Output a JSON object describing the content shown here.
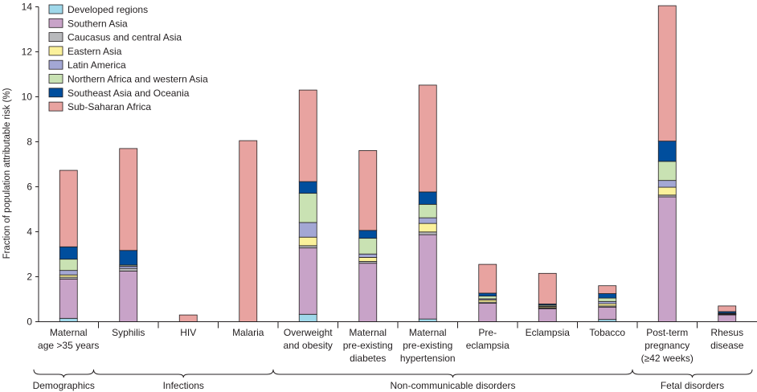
{
  "chart_data": {
    "type": "bar",
    "stacked": true,
    "title": "",
    "xlabel": "",
    "ylabel": "Fraction of population attributable risk (%)",
    "ylim": [
      0,
      14
    ],
    "yticks": [
      "0",
      "2",
      "4",
      "6",
      "8",
      "10",
      "12",
      "14"
    ],
    "legend_position": "top-left",
    "grid": false,
    "categories": [
      [
        "Maternal",
        "age >35 years"
      ],
      [
        "Syphilis"
      ],
      [
        "HIV"
      ],
      [
        "Malaria"
      ],
      [
        "Overweight",
        "and obesity"
      ],
      [
        "Maternal",
        "pre-existing",
        "diabetes"
      ],
      [
        "Maternal",
        "pre-existing",
        "hypertension"
      ],
      [
        "Pre-",
        "eclampsia"
      ],
      [
        "Eclampsia"
      ],
      [
        "Tobacco"
      ],
      [
        "Post-term",
        "pregnancy",
        "(≥42 weeks)"
      ],
      [
        "Rhesus",
        "disease"
      ]
    ],
    "groups": [
      {
        "label": "Demographics",
        "from": 0,
        "to": 0
      },
      {
        "label": "Infections",
        "from": 1,
        "to": 3
      },
      {
        "label": "Non-communicable disorders",
        "from": 4,
        "to": 9
      },
      {
        "label": "Fetal disorders",
        "from": 10,
        "to": 11
      }
    ],
    "series": [
      {
        "name": "Developed regions",
        "color": "#9fd8ea",
        "values": [
          0.15,
          0.0,
          0.0,
          0.0,
          0.33,
          0.0,
          0.12,
          0.0,
          0.0,
          0.1,
          0.0,
          0.0
        ]
      },
      {
        "name": "Southern Asia",
        "color": "#c8a3c8",
        "values": [
          1.75,
          2.25,
          0.0,
          0.0,
          2.95,
          2.6,
          3.75,
          0.82,
          0.58,
          0.55,
          5.55,
          0.3
        ]
      },
      {
        "name": "Caucasus and central Asia",
        "color": "#b8b9bc",
        "values": [
          0.08,
          0.12,
          0.0,
          0.0,
          0.1,
          0.08,
          0.12,
          0.05,
          0.03,
          0.05,
          0.08,
          0.02
        ]
      },
      {
        "name": "Eastern Asia",
        "color": "#fbf19b",
        "values": [
          0.1,
          0.0,
          0.0,
          0.0,
          0.38,
          0.18,
          0.38,
          0.1,
          0.05,
          0.1,
          0.35,
          0.02
        ]
      },
      {
        "name": "Latin America",
        "color": "#a3a7d4",
        "values": [
          0.2,
          0.1,
          0.0,
          0.0,
          0.65,
          0.15,
          0.25,
          0.05,
          0.03,
          0.1,
          0.3,
          0.02
        ]
      },
      {
        "name": "Northern Africa and western Asia",
        "color": "#c9e2b3",
        "values": [
          0.5,
          0.05,
          0.0,
          0.0,
          1.3,
          0.7,
          0.6,
          0.12,
          0.05,
          0.15,
          0.85,
          0.02
        ]
      },
      {
        "name": "Southeast Asia and Oceania",
        "color": "#004e9d",
        "values": [
          0.55,
          0.65,
          0.0,
          0.0,
          0.52,
          0.35,
          0.55,
          0.13,
          0.05,
          0.2,
          0.9,
          0.07
        ]
      },
      {
        "name": "Sub-Saharan Africa",
        "color": "#e8a3a0",
        "values": [
          3.4,
          4.53,
          0.3,
          8.05,
          4.07,
          3.55,
          4.75,
          1.28,
          1.36,
          0.35,
          6.02,
          0.25
        ]
      }
    ]
  }
}
